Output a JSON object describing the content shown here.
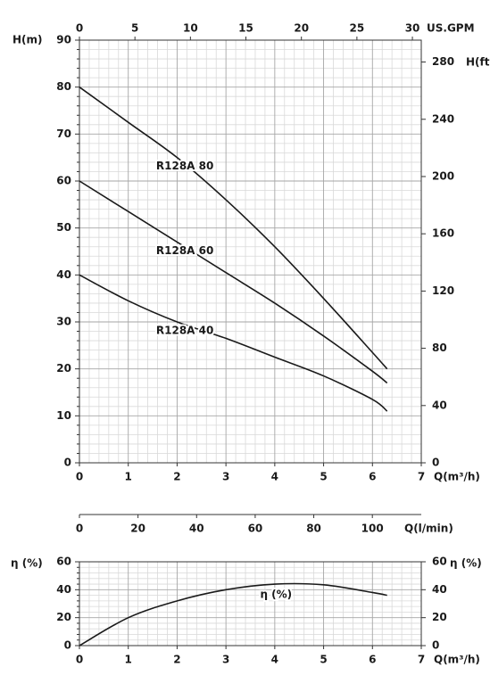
{
  "chart_data": [
    {
      "type": "line",
      "x_label": "Q(m³/h)",
      "xlim": [
        0,
        7
      ],
      "xticks": [
        0,
        1,
        2,
        3,
        4,
        5,
        6,
        7
      ],
      "x2_label": "US.GPM",
      "x2lim": [
        0,
        30.8
      ],
      "x2ticks": [
        0,
        5,
        10,
        15,
        20,
        25,
        30
      ],
      "x3_label": "Q(l/min)",
      "x3lim": [
        0,
        116.7
      ],
      "x3ticks": [
        0,
        20,
        40,
        60,
        80,
        100
      ],
      "y_label": "H(m)",
      "ylim": [
        0,
        90
      ],
      "yticks": [
        0,
        10,
        20,
        30,
        40,
        50,
        60,
        70,
        80,
        90
      ],
      "y2_label": "H(ft)",
      "y2lim": [
        0,
        295.3
      ],
      "y2ticks": [
        0,
        40,
        80,
        120,
        160,
        200,
        240,
        280
      ],
      "grid": true,
      "minor_grid": true,
      "series": [
        {
          "name": "R128A 80",
          "color": "#1a1a1a",
          "x": [
            0,
            1,
            2,
            3,
            4,
            5,
            6,
            6.3
          ],
          "values": [
            80,
            72.5,
            65,
            56,
            46,
            35,
            23.5,
            20
          ]
        },
        {
          "name": "R128A 60",
          "color": "#1a1a1a",
          "x": [
            0,
            1,
            2,
            3,
            4,
            5,
            6,
            6.3
          ],
          "values": [
            60,
            53.5,
            47,
            40.5,
            34,
            27,
            19.5,
            17
          ]
        },
        {
          "name": "R128A 40",
          "color": "#1a1a1a",
          "x": [
            0,
            1,
            2,
            3,
            4,
            5,
            6,
            6.3
          ],
          "values": [
            40,
            34.5,
            30,
            26.5,
            22.5,
            18.5,
            13.5,
            11
          ]
        }
      ]
    },
    {
      "type": "line",
      "x_label": "Q(m³/h)",
      "xlim": [
        0,
        7
      ],
      "xticks": [
        0,
        1,
        2,
        3,
        4,
        5,
        6,
        7
      ],
      "y_label": "η (%)",
      "ylim": [
        0,
        60
      ],
      "yticks": [
        0,
        20,
        40,
        60
      ],
      "y2_label": "η (%)",
      "y2lim": [
        0,
        60
      ],
      "y2ticks": [
        0,
        20,
        40,
        60
      ],
      "grid": true,
      "minor_grid": true,
      "series": [
        {
          "name": "η (%)",
          "color": "#1a1a1a",
          "x": [
            0,
            1,
            2,
            3,
            4,
            5,
            6,
            6.3
          ],
          "values": [
            0,
            20,
            32,
            40,
            44,
            43.5,
            38,
            36
          ]
        }
      ]
    }
  ]
}
